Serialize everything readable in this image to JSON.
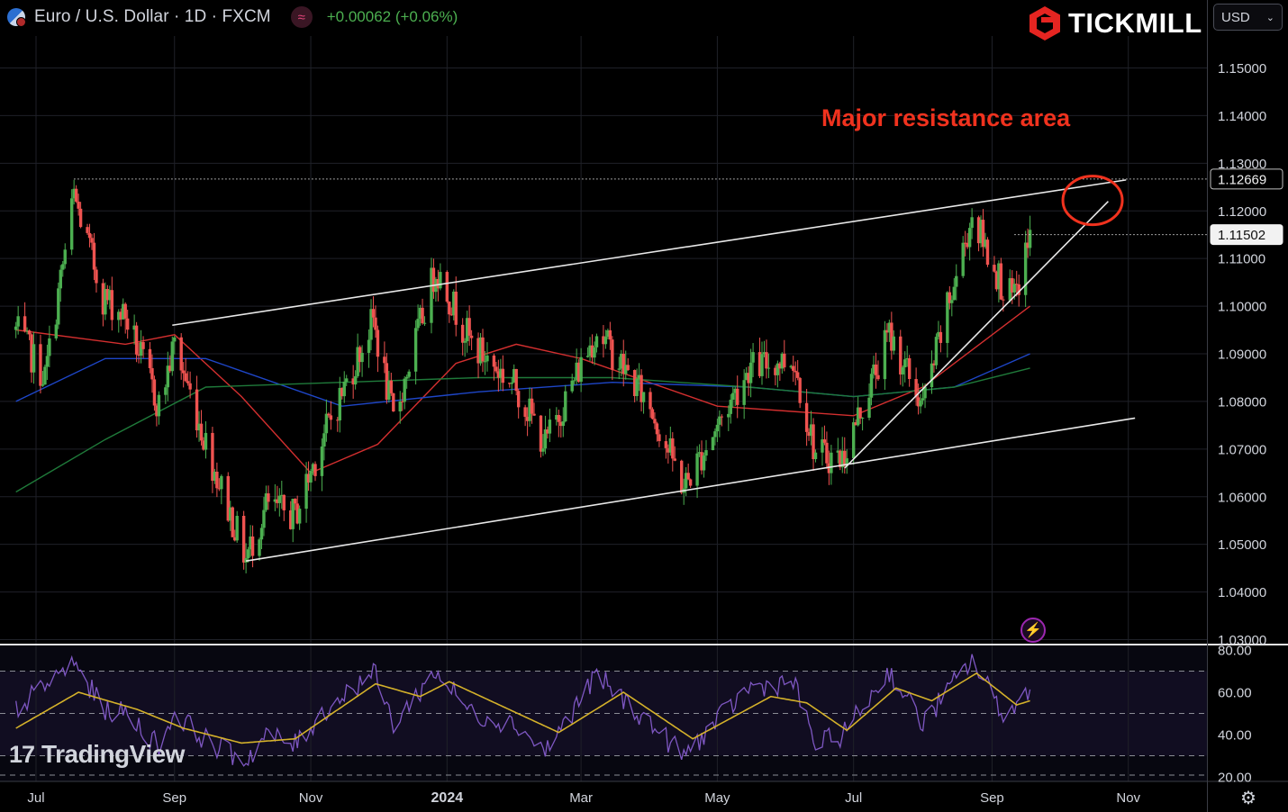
{
  "header": {
    "symbol": "Euro / U.S. Dollar · 1D · FXCM",
    "indicator_icon": "waves-icon",
    "change": "+0.00062 (+0.06%)"
  },
  "brand": {
    "name": "TICKMILL"
  },
  "currency_selector": {
    "value": "USD",
    "icon": "chevron-down-icon"
  },
  "watermark": {
    "logo": "17",
    "name": "TradingView"
  },
  "colors": {
    "up": "#4caf50",
    "down": "#ef5350",
    "annotation": "#f0321e",
    "rsi": "#7e57c2",
    "rsi_ma": "#d4b12a"
  },
  "chart_data": {
    "type": "candlestick",
    "title": "Euro / U.S. Dollar · 1D · FXCM",
    "annotation": "Major resistance area",
    "price_axis": {
      "ticks": [
        "1.15000",
        "1.14000",
        "1.13000",
        "1.12000",
        "1.11000",
        "1.10000",
        "1.09000",
        "1.08000",
        "1.07000",
        "1.06000",
        "1.05000",
        "1.04000",
        "1.03000"
      ],
      "range": [
        1.027,
        1.157
      ]
    },
    "price_labels": [
      {
        "value": 1.12669,
        "label": "1.12669",
        "style": "dark"
      },
      {
        "value": 1.11502,
        "label": "1.11502",
        "style": "light"
      }
    ],
    "time_axis": {
      "labels": [
        "Jul",
        "Sep",
        "Nov",
        "2024",
        "Mar",
        "May",
        "Jul",
        "Sep",
        "Nov"
      ],
      "dates": [
        "2023-07-01",
        "2023-09-01",
        "2023-11-01",
        "2024-01-01",
        "2024-03-01",
        "2024-05-01",
        "2024-07-01",
        "2024-09-01",
        "2024-11-01"
      ]
    },
    "price_anchors": [
      [
        "2023-06-22",
        1.095
      ],
      [
        "2023-07-05",
        1.085
      ],
      [
        "2023-07-18",
        1.123
      ],
      [
        "2023-07-31",
        1.102
      ],
      [
        "2023-08-10",
        1.098
      ],
      [
        "2023-08-25",
        1.079
      ],
      [
        "2023-09-01",
        1.092
      ],
      [
        "2023-09-18",
        1.067
      ],
      [
        "2023-10-03",
        1.047
      ],
      [
        "2023-10-12",
        1.058
      ],
      [
        "2023-10-25",
        1.056
      ],
      [
        "2023-11-06",
        1.072
      ],
      [
        "2023-11-29",
        1.097
      ],
      [
        "2023-12-08",
        1.076
      ],
      [
        "2023-12-27",
        1.108
      ],
      [
        "2024-01-12",
        1.092
      ],
      [
        "2024-02-01",
        1.083
      ],
      [
        "2024-02-14",
        1.071
      ],
      [
        "2024-03-08",
        1.095
      ],
      [
        "2024-04-01",
        1.079
      ],
      [
        "2024-04-16",
        1.062
      ],
      [
        "2024-05-15",
        1.087
      ],
      [
        "2024-06-04",
        1.089
      ],
      [
        "2024-06-14",
        1.069
      ],
      [
        "2024-06-26",
        1.068
      ],
      [
        "2024-07-17",
        1.094
      ],
      [
        "2024-08-01",
        1.079
      ],
      [
        "2024-08-08",
        1.092
      ],
      [
        "2024-08-23",
        1.119
      ],
      [
        "2024-09-06",
        1.104
      ],
      [
        "2024-09-11",
        1.101
      ],
      [
        "2024-09-18",
        1.115
      ]
    ],
    "trendlines": [
      {
        "name": "upper channel",
        "from": [
          "2023-08-31",
          1.096
        ],
        "to": [
          "2024-10-31",
          1.1265
        ]
      },
      {
        "name": "lower channel",
        "from": [
          "2023-10-03",
          1.0465
        ],
        "to": [
          "2024-11-04",
          1.0765
        ]
      },
      {
        "name": "support",
        "from": [
          "2024-06-27",
          1.066
        ],
        "to": [
          "2024-10-23",
          1.122
        ]
      }
    ],
    "resistance_level": 1.12669,
    "moving_averages": [
      {
        "color": "#d32f2f",
        "anchors": [
          [
            "2023-06-22",
            1.095
          ],
          [
            "2023-08-10",
            1.092
          ],
          [
            "2023-09-01",
            1.094
          ],
          [
            "2023-10-01",
            1.081
          ],
          [
            "2023-11-01",
            1.065
          ],
          [
            "2023-12-01",
            1.071
          ],
          [
            "2024-01-05",
            1.088
          ],
          [
            "2024-02-01",
            1.092
          ],
          [
            "2024-03-01",
            1.089
          ],
          [
            "2024-05-01",
            1.079
          ],
          [
            "2024-07-01",
            1.077
          ],
          [
            "2024-08-01",
            1.083
          ],
          [
            "2024-09-18",
            1.1
          ]
        ]
      },
      {
        "color": "#1e46c8",
        "anchors": [
          [
            "2023-06-22",
            1.08
          ],
          [
            "2023-08-01",
            1.089
          ],
          [
            "2023-09-15",
            1.089
          ],
          [
            "2023-11-15",
            1.079
          ],
          [
            "2024-01-15",
            1.082
          ],
          [
            "2024-03-15",
            1.084
          ],
          [
            "2024-05-15",
            1.083
          ],
          [
            "2024-07-01",
            1.081
          ],
          [
            "2024-08-15",
            1.083
          ],
          [
            "2024-09-18",
            1.09
          ]
        ]
      },
      {
        "color": "#1f7a3a",
        "anchors": [
          [
            "2023-06-22",
            1.061
          ],
          [
            "2023-08-01",
            1.072
          ],
          [
            "2023-09-15",
            1.083
          ],
          [
            "2023-11-15",
            1.084
          ],
          [
            "2024-01-15",
            1.085
          ],
          [
            "2024-03-15",
            1.085
          ],
          [
            "2024-05-15",
            1.083
          ],
          [
            "2024-07-01",
            1.081
          ],
          [
            "2024-08-15",
            1.083
          ],
          [
            "2024-09-18",
            1.087
          ]
        ]
      }
    ],
    "rsi": {
      "ticks": [
        "80.00",
        "60.00",
        "40.00",
        "20.00"
      ],
      "levels": [
        70,
        50,
        30
      ],
      "anchors": [
        [
          "2023-06-22",
          52
        ],
        [
          "2023-07-18",
          74
        ],
        [
          "2023-07-31",
          52
        ],
        [
          "2023-08-10",
          50
        ],
        [
          "2023-08-25",
          35
        ],
        [
          "2023-09-01",
          50
        ],
        [
          "2023-09-18",
          35
        ],
        [
          "2023-10-03",
          28
        ],
        [
          "2023-10-12",
          40
        ],
        [
          "2023-10-25",
          35
        ],
        [
          "2023-11-06",
          50
        ],
        [
          "2023-11-29",
          70
        ],
        [
          "2023-12-08",
          45
        ],
        [
          "2023-12-27",
          70
        ],
        [
          "2024-01-12",
          50
        ],
        [
          "2024-02-01",
          45
        ],
        [
          "2024-02-14",
          32
        ],
        [
          "2024-03-08",
          68
        ],
        [
          "2024-04-01",
          45
        ],
        [
          "2024-04-16",
          30
        ],
        [
          "2024-05-15",
          62
        ],
        [
          "2024-06-04",
          65
        ],
        [
          "2024-06-14",
          35
        ],
        [
          "2024-06-26",
          40
        ],
        [
          "2024-07-17",
          70
        ],
        [
          "2024-08-01",
          45
        ],
        [
          "2024-08-08",
          55
        ],
        [
          "2024-08-23",
          75
        ],
        [
          "2024-09-06",
          50
        ],
        [
          "2024-09-11",
          52
        ],
        [
          "2024-09-18",
          63
        ]
      ],
      "ma_anchors": [
        [
          "2023-06-22",
          43
        ],
        [
          "2023-07-20",
          60
        ],
        [
          "2023-08-15",
          52
        ],
        [
          "2023-09-05",
          43
        ],
        [
          "2023-10-01",
          36
        ],
        [
          "2023-10-25",
          38
        ],
        [
          "2023-11-30",
          64
        ],
        [
          "2023-12-20",
          58
        ],
        [
          "2024-01-02",
          65
        ],
        [
          "2024-02-20",
          41
        ],
        [
          "2024-03-20",
          60
        ],
        [
          "2024-04-20",
          38
        ],
        [
          "2024-05-25",
          58
        ],
        [
          "2024-06-10",
          55
        ],
        [
          "2024-06-28",
          42
        ],
        [
          "2024-07-20",
          62
        ],
        [
          "2024-08-05",
          56
        ],
        [
          "2024-08-25",
          69
        ],
        [
          "2024-09-12",
          54
        ],
        [
          "2024-09-18",
          56
        ]
      ]
    }
  }
}
